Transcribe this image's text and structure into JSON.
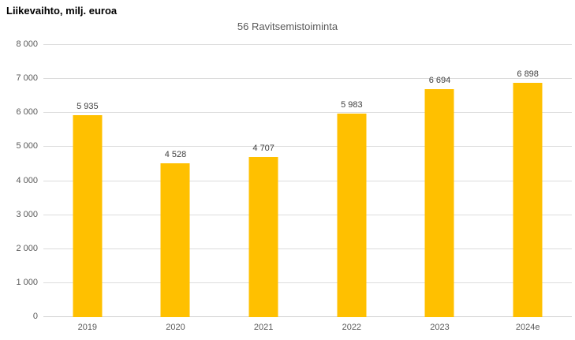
{
  "header": {
    "title": "Liikevaihto, milj. euroa"
  },
  "chart_data": {
    "type": "bar",
    "title": "56 Ravitsemistoiminta",
    "categories": [
      "2019",
      "2020",
      "2021",
      "2022",
      "2023",
      "2024e"
    ],
    "values": [
      5935,
      4528,
      4707,
      5983,
      6694,
      6898
    ],
    "value_labels": [
      "5 935",
      "4 528",
      "4 707",
      "5 983",
      "6 694",
      "6 898"
    ],
    "xlabel": "",
    "ylabel": "",
    "ylim": [
      0,
      8000
    ],
    "ytick_step": 1000,
    "ytick_labels": [
      "0",
      "1 000",
      "2 000",
      "3 000",
      "4 000",
      "5 000",
      "6 000",
      "7 000",
      "8 000"
    ],
    "grid": "horizontal",
    "legend": "none",
    "bar_color": "#FFC000",
    "label_color": "#404040",
    "axis_text_color": "#595959",
    "gridline_color": "#dcdcdc"
  }
}
